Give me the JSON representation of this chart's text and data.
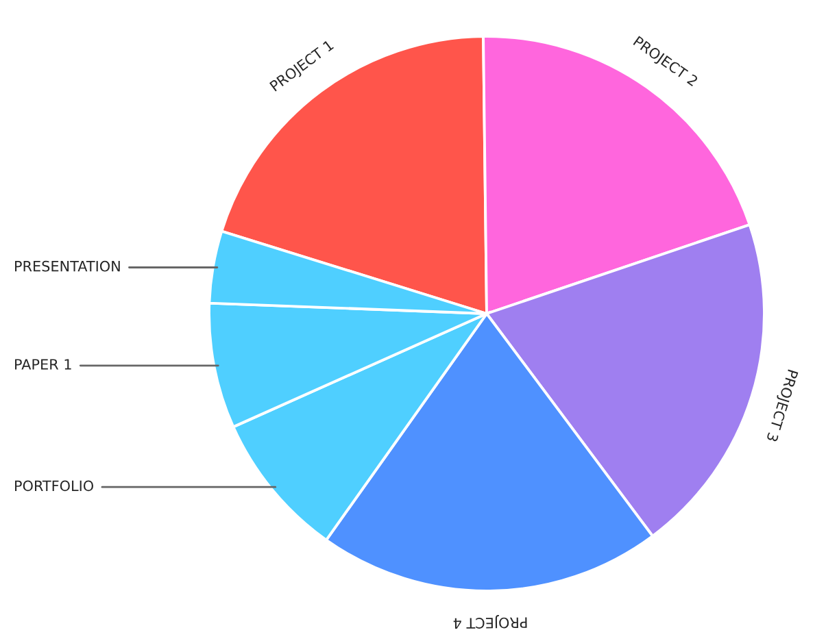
{
  "chart_data": {
    "type": "pie",
    "categories": [
      "PROJECT 1",
      "PROJECT 2",
      "PROJECT 3",
      "PROJECT 4",
      "PORTFOLIO",
      "PAPER 1",
      "PRESENTATION"
    ],
    "values": [
      20,
      20,
      20,
      20,
      8.5,
      7.3,
      4.2
    ],
    "colors": [
      "#ff554b",
      "#ff66dd",
      "#9f7ff0",
      "#4f91ff",
      "#4fcfff",
      "#4fcfff",
      "#4fcfff"
    ]
  }
}
